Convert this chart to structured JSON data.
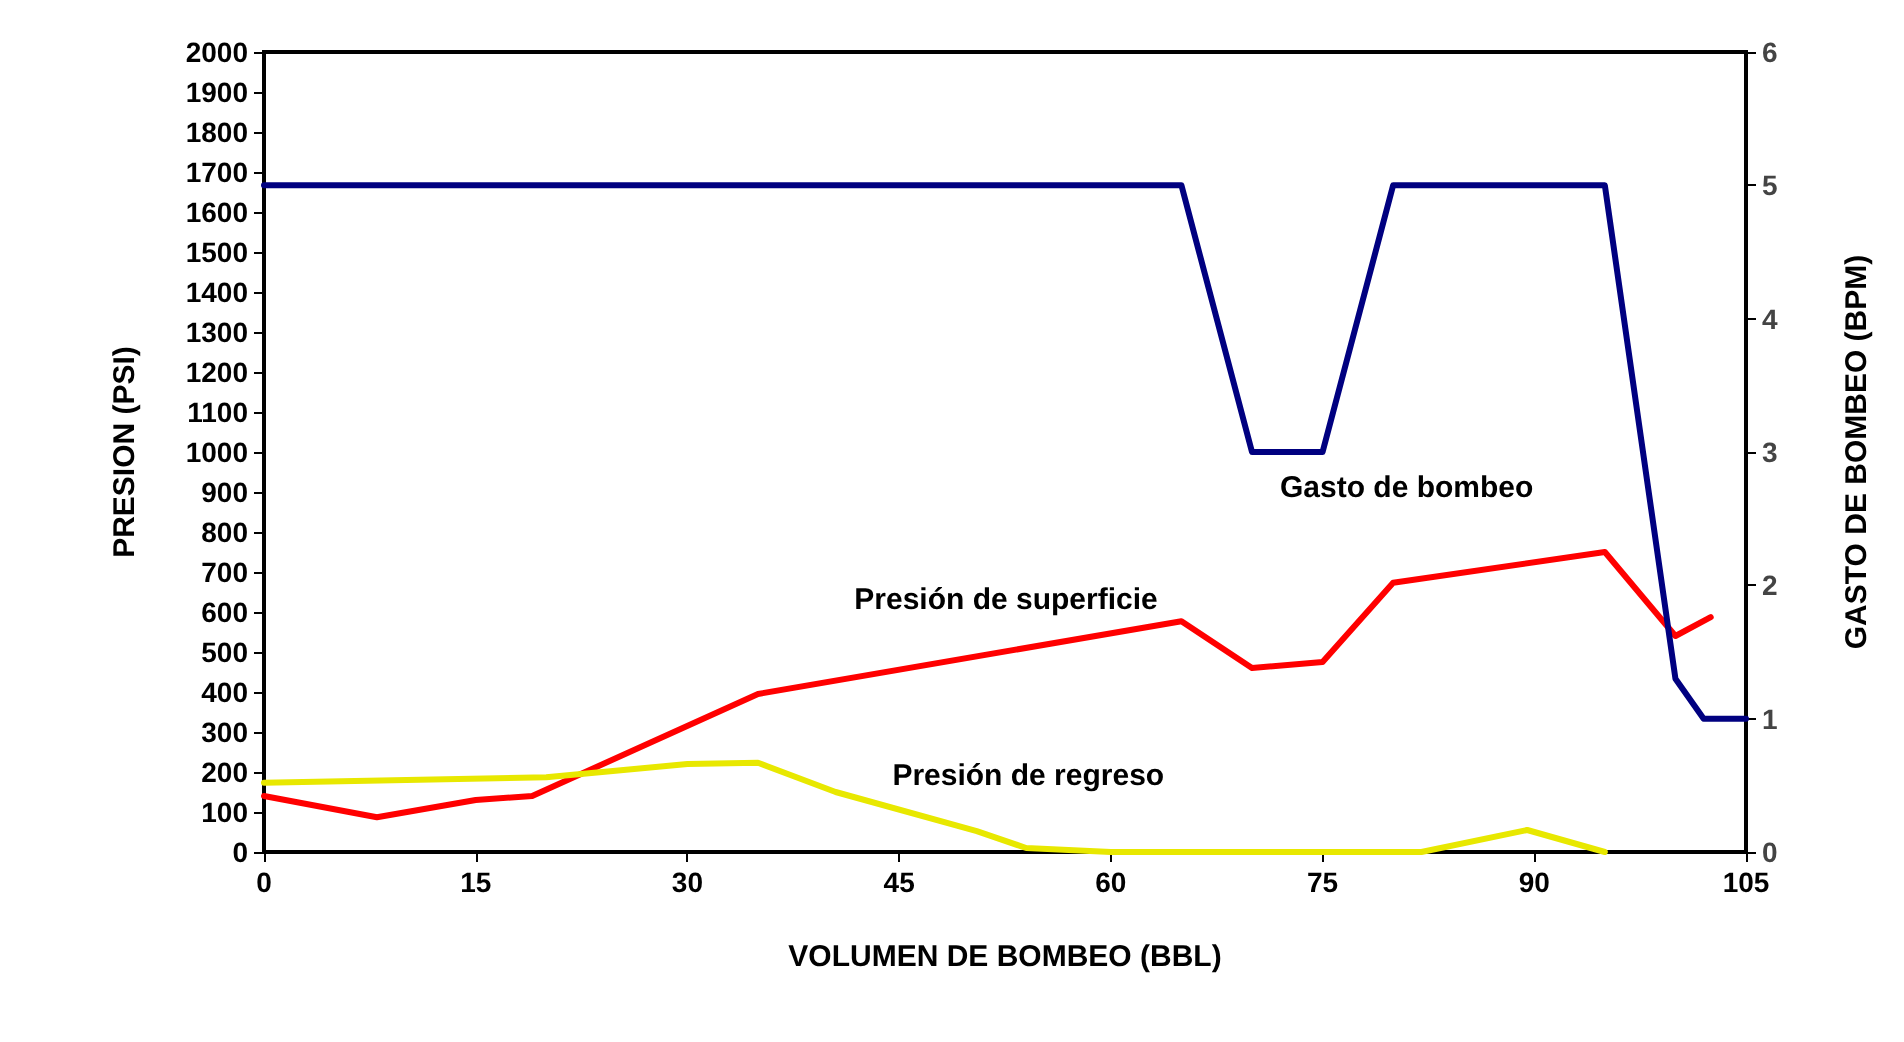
{
  "chart_data": {
    "type": "line",
    "xlabel": "VOLUMEN DE BOMBEO (BBL)",
    "ylabel": "PRESION (PSI)",
    "y2label": "GASTO DE BOMBEO (BPM)",
    "xlim": [
      0,
      105
    ],
    "xticks": [
      0,
      15,
      30,
      45,
      60,
      75,
      90,
      105
    ],
    "ylim": [
      0,
      2000
    ],
    "yticks": [
      0,
      100,
      200,
      300,
      400,
      500,
      600,
      700,
      800,
      900,
      1000,
      1100,
      1200,
      1300,
      1400,
      1500,
      1600,
      1700,
      1800,
      1900,
      2000
    ],
    "y2lim": [
      0,
      6
    ],
    "y2ticks": [
      0,
      1,
      2,
      3,
      4,
      5,
      6
    ],
    "grid": false,
    "marker": "none",
    "line_style": "solid",
    "series": [
      {
        "color": "#000080",
        "axis": "y2",
        "x": [
          0,
          65,
          70,
          75,
          80,
          95,
          100,
          102,
          105
        ],
        "values": [
          5,
          5,
          3,
          3,
          5,
          5,
          1.3,
          1,
          1
        ]
      },
      {
        "color": "#ff0000",
        "x": [
          0,
          8,
          15,
          19,
          35,
          65,
          70,
          75,
          80,
          95,
          100,
          102.5
        ],
        "values": [
          140,
          87,
          130,
          140,
          395,
          577,
          460,
          475,
          673,
          750,
          540,
          587
        ]
      },
      {
        "color": "#e8e800",
        "x": [
          0,
          20,
          30,
          35,
          40.5,
          50.5,
          54,
          60,
          65,
          70,
          75,
          82,
          89.5,
          95
        ],
        "values": [
          173,
          187,
          220,
          223,
          150,
          52,
          10,
          0,
          0,
          0,
          0,
          0,
          55,
          0
        ]
      }
    ],
    "annotations": [
      "Gasto de bombeo",
      "Presión de superficie",
      "Presión de regreso"
    ]
  }
}
